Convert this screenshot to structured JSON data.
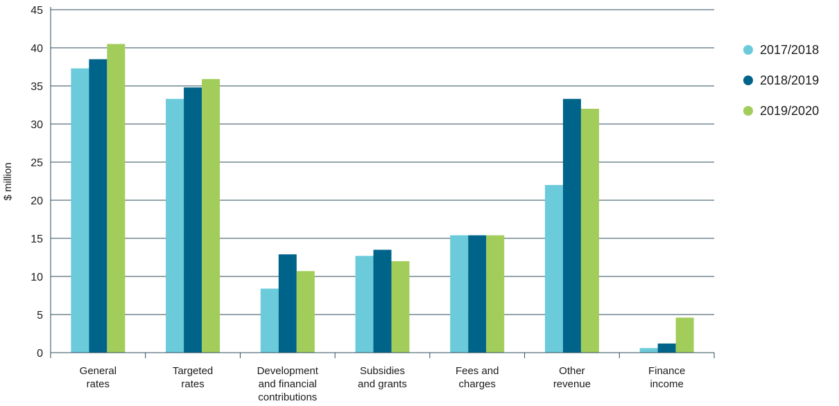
{
  "chart_data": {
    "type": "bar",
    "title": "",
    "xlabel": "",
    "ylabel": "$ million",
    "ylim": [
      0,
      45
    ],
    "yticks": [
      0,
      5,
      10,
      15,
      20,
      25,
      30,
      35,
      40,
      45
    ],
    "grid": true,
    "legend_position": "right",
    "categories": [
      [
        "General",
        "rates"
      ],
      [
        "Targeted",
        "rates"
      ],
      [
        "Development",
        "and financial",
        "contributions"
      ],
      [
        "Subsidies",
        "and grants"
      ],
      [
        "Fees and",
        "charges"
      ],
      [
        "Other",
        "revenue"
      ],
      [
        "Finance",
        "income"
      ]
    ],
    "series": [
      {
        "name": "2017/2018",
        "color": "#6BCBDB",
        "values": [
          37.3,
          33.3,
          8.4,
          12.7,
          15.4,
          22.0,
          0.6
        ]
      },
      {
        "name": "2018/2019",
        "color": "#00638A",
        "values": [
          38.5,
          34.8,
          12.9,
          13.5,
          15.4,
          33.3,
          1.2
        ]
      },
      {
        "name": "2019/2020",
        "color": "#A2CD5A",
        "values": [
          40.5,
          35.9,
          10.7,
          12.0,
          15.4,
          32.0,
          4.6
        ]
      }
    ]
  }
}
